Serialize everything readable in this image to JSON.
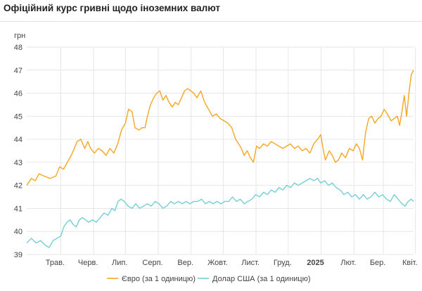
{
  "header": {
    "title": "Офіційний курс гривні щодо іноземних валют"
  },
  "chart_data": {
    "type": "line",
    "ylabel": "грн",
    "ylim": [
      39,
      48
    ],
    "yticks": [
      39,
      40,
      41,
      42,
      43,
      44,
      45,
      46,
      47,
      48
    ],
    "x_labels": [
      {
        "label": "Трав.",
        "bold": false,
        "pos": 0.088
      },
      {
        "label": "Черв.",
        "bold": false,
        "pos": 0.173
      },
      {
        "label": "Лип.",
        "bold": false,
        "pos": 0.255
      },
      {
        "label": "Серп.",
        "bold": false,
        "pos": 0.34
      },
      {
        "label": "Вер.",
        "bold": false,
        "pos": 0.425
      },
      {
        "label": "Жовт.",
        "bold": false,
        "pos": 0.508
      },
      {
        "label": "Лист.",
        "bold": false,
        "pos": 0.593
      },
      {
        "label": "Груд.",
        "bold": false,
        "pos": 0.676
      },
      {
        "label": "2025",
        "bold": true,
        "pos": 0.761
      },
      {
        "label": "Лют.",
        "bold": false,
        "pos": 0.846
      },
      {
        "label": "Бер.",
        "bold": false,
        "pos": 0.922
      },
      {
        "label": "Квіт.",
        "bold": false,
        "pos": 1.005
      }
    ],
    "grid": true,
    "legend_placement": "bottom",
    "series": [
      {
        "name": "Євро (за 1 одиницю)",
        "color": "#f5a623",
        "points": [
          [
            0.0,
            42.0
          ],
          [
            0.012,
            42.3
          ],
          [
            0.022,
            42.2
          ],
          [
            0.032,
            42.5
          ],
          [
            0.045,
            42.4
          ],
          [
            0.06,
            42.3
          ],
          [
            0.075,
            42.4
          ],
          [
            0.085,
            42.8
          ],
          [
            0.095,
            42.7
          ],
          [
            0.105,
            43.0
          ],
          [
            0.115,
            43.3
          ],
          [
            0.123,
            43.6
          ],
          [
            0.13,
            43.9
          ],
          [
            0.14,
            44.0
          ],
          [
            0.15,
            43.6
          ],
          [
            0.158,
            43.9
          ],
          [
            0.165,
            43.6
          ],
          [
            0.175,
            43.4
          ],
          [
            0.185,
            43.6
          ],
          [
            0.195,
            43.5
          ],
          [
            0.205,
            43.3
          ],
          [
            0.215,
            43.6
          ],
          [
            0.225,
            43.4
          ],
          [
            0.235,
            43.8
          ],
          [
            0.245,
            44.4
          ],
          [
            0.255,
            44.7
          ],
          [
            0.263,
            45.3
          ],
          [
            0.272,
            45.2
          ],
          [
            0.28,
            44.5
          ],
          [
            0.29,
            44.4
          ],
          [
            0.298,
            44.5
          ],
          [
            0.306,
            44.5
          ],
          [
            0.312,
            45.0
          ],
          [
            0.32,
            45.5
          ],
          [
            0.328,
            45.8
          ],
          [
            0.336,
            46.0
          ],
          [
            0.344,
            46.1
          ],
          [
            0.352,
            45.7
          ],
          [
            0.36,
            45.9
          ],
          [
            0.368,
            45.6
          ],
          [
            0.376,
            45.4
          ],
          [
            0.384,
            45.6
          ],
          [
            0.392,
            45.5
          ],
          [
            0.4,
            45.8
          ],
          [
            0.408,
            46.1
          ],
          [
            0.416,
            46.2
          ],
          [
            0.424,
            46.1
          ],
          [
            0.432,
            46.0
          ],
          [
            0.44,
            45.8
          ],
          [
            0.45,
            46.1
          ],
          [
            0.46,
            45.6
          ],
          [
            0.47,
            45.3
          ],
          [
            0.48,
            45.0
          ],
          [
            0.49,
            45.1
          ],
          [
            0.5,
            44.9
          ],
          [
            0.51,
            44.8
          ],
          [
            0.52,
            44.7
          ],
          [
            0.53,
            44.5
          ],
          [
            0.54,
            44.0
          ],
          [
            0.548,
            43.8
          ],
          [
            0.555,
            43.6
          ],
          [
            0.562,
            43.3
          ],
          [
            0.57,
            43.5
          ],
          [
            0.578,
            43.2
          ],
          [
            0.586,
            43.0
          ],
          [
            0.594,
            43.7
          ],
          [
            0.602,
            43.6
          ],
          [
            0.612,
            43.8
          ],
          [
            0.622,
            43.7
          ],
          [
            0.632,
            43.9
          ],
          [
            0.642,
            43.8
          ],
          [
            0.652,
            43.7
          ],
          [
            0.662,
            43.6
          ],
          [
            0.672,
            43.7
          ],
          [
            0.682,
            43.8
          ],
          [
            0.692,
            43.6
          ],
          [
            0.702,
            43.7
          ],
          [
            0.712,
            43.5
          ],
          [
            0.722,
            43.6
          ],
          [
            0.732,
            43.4
          ],
          [
            0.742,
            43.8
          ],
          [
            0.752,
            44.0
          ],
          [
            0.76,
            44.2
          ],
          [
            0.766,
            43.6
          ],
          [
            0.772,
            43.1
          ],
          [
            0.782,
            43.5
          ],
          [
            0.79,
            43.3
          ],
          [
            0.798,
            43.0
          ],
          [
            0.806,
            43.1
          ],
          [
            0.814,
            43.4
          ],
          [
            0.824,
            43.2
          ],
          [
            0.834,
            43.6
          ],
          [
            0.844,
            43.5
          ],
          [
            0.852,
            43.8
          ],
          [
            0.86,
            43.6
          ],
          [
            0.868,
            43.1
          ],
          [
            0.876,
            44.3
          ],
          [
            0.884,
            44.9
          ],
          [
            0.892,
            45.0
          ],
          [
            0.9,
            44.7
          ],
          [
            0.908,
            44.9
          ],
          [
            0.916,
            45.0
          ],
          [
            0.924,
            45.3
          ],
          [
            0.932,
            45.1
          ],
          [
            0.942,
            44.8
          ],
          [
            0.95,
            44.9
          ],
          [
            0.958,
            45.0
          ],
          [
            0.964,
            44.6
          ],
          [
            0.97,
            45.2
          ],
          [
            0.976,
            45.9
          ],
          [
            0.982,
            45.0
          ],
          [
            0.988,
            46.0
          ],
          [
            0.994,
            46.8
          ],
          [
            1.0,
            47.0
          ]
        ]
      },
      {
        "name": "Долар США (за 1 одиницю)",
        "color": "#76cfd6",
        "points": [
          [
            0.0,
            39.5
          ],
          [
            0.012,
            39.7
          ],
          [
            0.024,
            39.5
          ],
          [
            0.036,
            39.6
          ],
          [
            0.048,
            39.4
          ],
          [
            0.058,
            39.3
          ],
          [
            0.068,
            39.6
          ],
          [
            0.078,
            39.7
          ],
          [
            0.088,
            39.8
          ],
          [
            0.096,
            40.2
          ],
          [
            0.104,
            40.4
          ],
          [
            0.112,
            40.5
          ],
          [
            0.12,
            40.3
          ],
          [
            0.128,
            40.2
          ],
          [
            0.136,
            40.5
          ],
          [
            0.144,
            40.6
          ],
          [
            0.152,
            40.5
          ],
          [
            0.16,
            40.4
          ],
          [
            0.17,
            40.5
          ],
          [
            0.18,
            40.4
          ],
          [
            0.19,
            40.6
          ],
          [
            0.2,
            40.8
          ],
          [
            0.21,
            40.7
          ],
          [
            0.22,
            41.0
          ],
          [
            0.228,
            40.9
          ],
          [
            0.236,
            41.3
          ],
          [
            0.244,
            41.4
          ],
          [
            0.252,
            41.3
          ],
          [
            0.262,
            41.1
          ],
          [
            0.272,
            41.0
          ],
          [
            0.282,
            41.2
          ],
          [
            0.292,
            41.0
          ],
          [
            0.302,
            41.1
          ],
          [
            0.312,
            41.2
          ],
          [
            0.322,
            41.1
          ],
          [
            0.332,
            41.3
          ],
          [
            0.342,
            41.2
          ],
          [
            0.352,
            41.0
          ],
          [
            0.362,
            41.1
          ],
          [
            0.372,
            41.3
          ],
          [
            0.382,
            41.2
          ],
          [
            0.392,
            41.3
          ],
          [
            0.402,
            41.2
          ],
          [
            0.412,
            41.3
          ],
          [
            0.422,
            41.2
          ],
          [
            0.432,
            41.3
          ],
          [
            0.442,
            41.3
          ],
          [
            0.452,
            41.4
          ],
          [
            0.462,
            41.2
          ],
          [
            0.472,
            41.3
          ],
          [
            0.482,
            41.2
          ],
          [
            0.492,
            41.3
          ],
          [
            0.502,
            41.2
          ],
          [
            0.512,
            41.3
          ],
          [
            0.522,
            41.3
          ],
          [
            0.532,
            41.5
          ],
          [
            0.542,
            41.3
          ],
          [
            0.552,
            41.4
          ],
          [
            0.562,
            41.2
          ],
          [
            0.572,
            41.3
          ],
          [
            0.582,
            41.4
          ],
          [
            0.592,
            41.6
          ],
          [
            0.602,
            41.5
          ],
          [
            0.612,
            41.7
          ],
          [
            0.622,
            41.6
          ],
          [
            0.632,
            41.8
          ],
          [
            0.642,
            41.7
          ],
          [
            0.652,
            41.9
          ],
          [
            0.662,
            41.8
          ],
          [
            0.672,
            42.0
          ],
          [
            0.682,
            41.9
          ],
          [
            0.692,
            42.1
          ],
          [
            0.702,
            42.0
          ],
          [
            0.712,
            42.1
          ],
          [
            0.722,
            42.2
          ],
          [
            0.732,
            42.3
          ],
          [
            0.742,
            42.2
          ],
          [
            0.752,
            42.3
          ],
          [
            0.76,
            42.1
          ],
          [
            0.77,
            42.2
          ],
          [
            0.78,
            42.0
          ],
          [
            0.79,
            42.1
          ],
          [
            0.8,
            41.9
          ],
          [
            0.81,
            41.8
          ],
          [
            0.82,
            41.6
          ],
          [
            0.83,
            41.7
          ],
          [
            0.84,
            41.5
          ],
          [
            0.85,
            41.6
          ],
          [
            0.86,
            41.4
          ],
          [
            0.87,
            41.6
          ],
          [
            0.88,
            41.4
          ],
          [
            0.89,
            41.5
          ],
          [
            0.9,
            41.7
          ],
          [
            0.91,
            41.5
          ],
          [
            0.92,
            41.6
          ],
          [
            0.93,
            41.4
          ],
          [
            0.94,
            41.3
          ],
          [
            0.95,
            41.6
          ],
          [
            0.96,
            41.4
          ],
          [
            0.97,
            41.2
          ],
          [
            0.978,
            41.1
          ],
          [
            0.986,
            41.3
          ],
          [
            0.994,
            41.4
          ],
          [
            1.0,
            41.3
          ]
        ]
      }
    ]
  }
}
